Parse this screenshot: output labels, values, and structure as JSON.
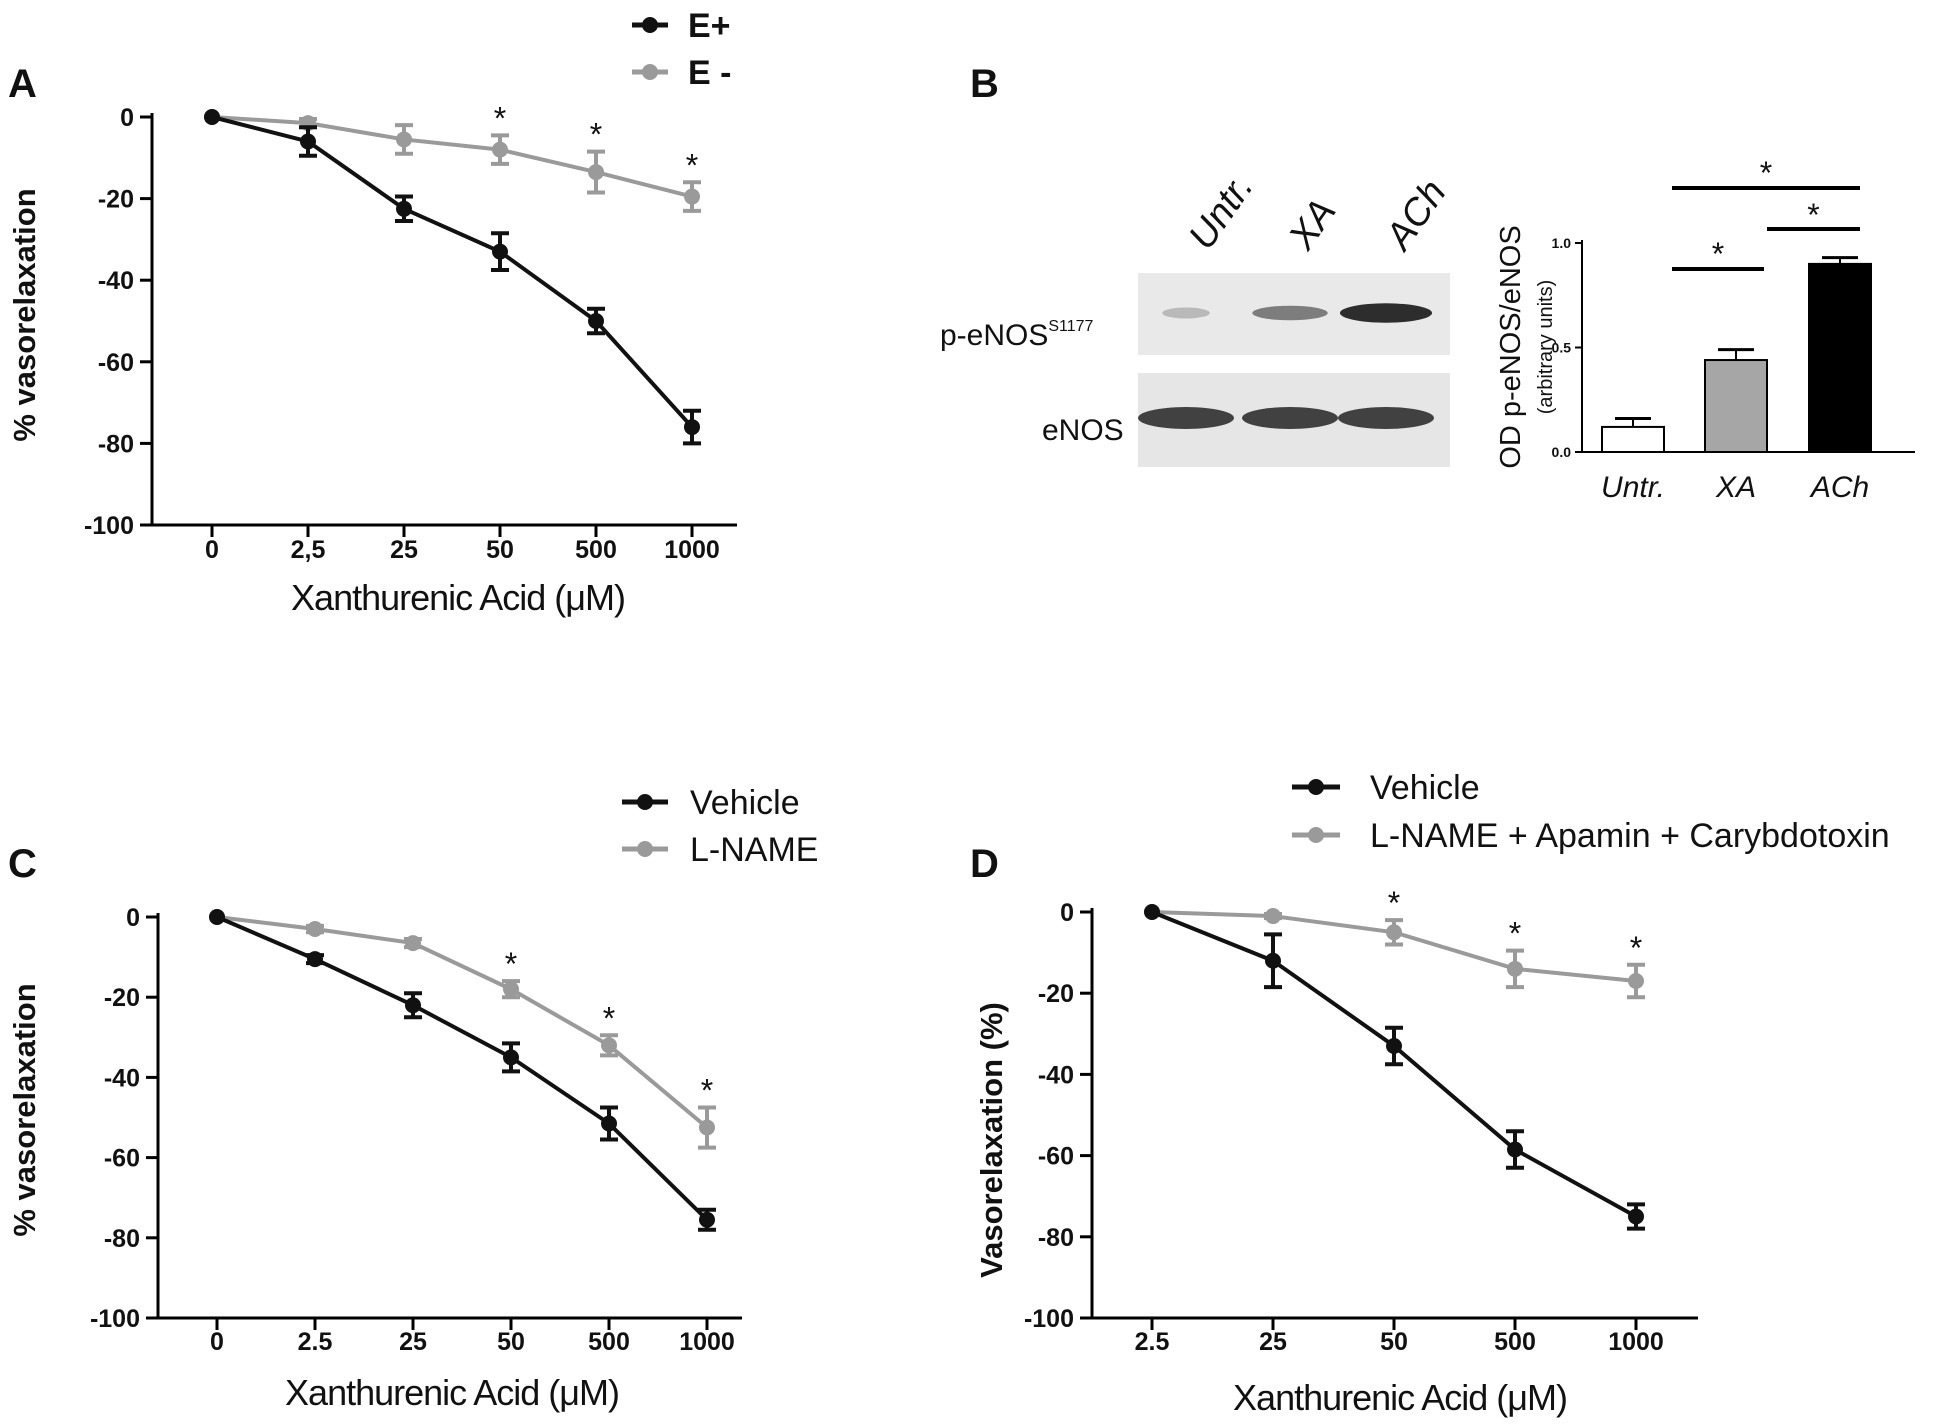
{
  "colors": {
    "e_plus": "#111111",
    "e_minus": "#9a9a9a",
    "bar_untr": "#ffffff",
    "bar_xa": "#a6a6a6",
    "bar_ach": "#000000"
  },
  "chart_data": [
    {
      "panel": "A",
      "type": "line",
      "categories": [
        "0",
        "2,5",
        "25",
        "50",
        "500",
        "1000"
      ],
      "xlabel": "Xanthurenic Acid (μM)",
      "ylabel": "% vasorelaxation",
      "ylim": [
        -100,
        0
      ],
      "yticks": [
        "0",
        "-20",
        "-40",
        "-60",
        "-80",
        "-100"
      ],
      "legend": [
        "E+",
        "E -"
      ],
      "series": [
        {
          "name": "E+",
          "values": [
            0,
            -6,
            -22.5,
            -33,
            -50,
            -76
          ],
          "errors": [
            0,
            3.5,
            3,
            4.5,
            3,
            4
          ]
        },
        {
          "name": "E -",
          "values": [
            0,
            -1.5,
            -5.5,
            -8,
            -13.5,
            -19.5
          ],
          "errors": [
            0,
            1,
            3.5,
            3.5,
            5,
            3.5
          ]
        }
      ],
      "significance": [
        "*",
        "*",
        "*"
      ],
      "significance_at": [
        "50",
        "500",
        "1000"
      ]
    },
    {
      "panel": "B",
      "type": "bar",
      "blot": {
        "lanes": [
          "Untr.",
          "XA",
          "ACh"
        ],
        "rows": [
          "p-eNOS",
          "eNOS"
        ],
        "row_superscript": "S1177",
        "p_enos_intensity": [
          0.25,
          0.55,
          0.95
        ],
        "enos_intensity": [
          0.85,
          0.85,
          0.85
        ]
      },
      "categories": [
        "Untr.",
        "XA",
        "ACh"
      ],
      "values": [
        0.12,
        0.44,
        0.9
      ],
      "errors": [
        0.04,
        0.05,
        0.03
      ],
      "ylabel": "OD p-eNOS/eNOS",
      "ylabel_sub": "(arbitrary units)",
      "ylim": [
        0,
        1.0
      ],
      "yticks": [
        "0.0",
        "0.5",
        "1.0"
      ],
      "comparisons": [
        {
          "from": "Untr.",
          "to": "XA",
          "label": "*"
        },
        {
          "from": "XA",
          "to": "ACh",
          "label": "*"
        },
        {
          "from": "Untr.",
          "to": "ACh",
          "label": "*"
        }
      ]
    },
    {
      "panel": "C",
      "type": "line",
      "categories": [
        "0",
        "2.5",
        "25",
        "50",
        "500",
        "1000"
      ],
      "xlabel": "Xanthurenic Acid (μM)",
      "ylabel": "% vasorelaxation",
      "ylim": [
        -100,
        0
      ],
      "yticks": [
        "0",
        "-20",
        "-40",
        "-60",
        "-80",
        "-100"
      ],
      "legend": [
        "Vehicle",
        "L-NAME"
      ],
      "series": [
        {
          "name": "Vehicle",
          "values": [
            0,
            -10.5,
            -22,
            -35,
            -51.5,
            -75.5
          ],
          "errors": [
            0,
            1,
            3,
            3.5,
            4,
            2.5
          ]
        },
        {
          "name": "L-NAME",
          "values": [
            0,
            -3,
            -6.5,
            -18,
            -32,
            -52.5
          ],
          "errors": [
            0,
            0.8,
            1,
            2,
            2.5,
            5
          ]
        }
      ],
      "significance": [
        "*",
        "*",
        "*"
      ],
      "significance_at": [
        "50",
        "500",
        "1000"
      ]
    },
    {
      "panel": "D",
      "type": "line",
      "categories": [
        "2.5",
        "25",
        "50",
        "500",
        "1000"
      ],
      "xlabel": "Xanthurenic Acid (μM)",
      "ylabel": "Vasorelaxation (%)",
      "ylim": [
        -100,
        0
      ],
      "yticks": [
        "0",
        "-20",
        "-40",
        "-60",
        "-80",
        "-100"
      ],
      "legend": [
        "Vehicle",
        "L-NAME + Apamin + Carybdotoxin"
      ],
      "series": [
        {
          "name": "Vehicle",
          "values": [
            0,
            -12,
            -33,
            -58.5,
            -75
          ],
          "errors": [
            0,
            6.5,
            4.5,
            4.5,
            3
          ]
        },
        {
          "name": "L-NAME + Apamin + Carybdotoxin",
          "values": [
            0,
            -1,
            -5,
            -14,
            -17
          ],
          "errors": [
            0,
            0.5,
            3,
            4.5,
            4
          ]
        }
      ],
      "significance": [
        "*",
        "*",
        "*"
      ],
      "significance_at": [
        "50",
        "500",
        "1000"
      ]
    }
  ]
}
